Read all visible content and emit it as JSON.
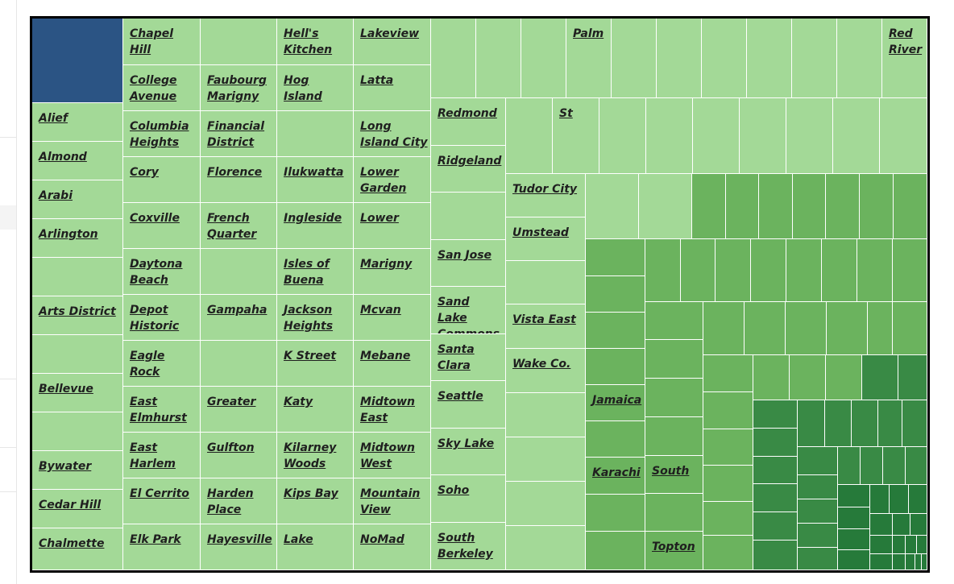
{
  "chart_data": {
    "type": "treemap",
    "note_colors": {
      "selected": "#2b5484",
      "light": "#a3d997",
      "mid": "#6bb35e",
      "dark": "#398a45",
      "darkest": "#267a3a"
    },
    "columns": [
      {
        "cells": [
          {
            "label": "",
            "value": 2,
            "selected": true
          },
          {
            "label": "Alief",
            "value": 1
          },
          {
            "label": "Almond",
            "value": 1
          },
          {
            "label": "Arabi",
            "value": 1
          },
          {
            "label": "Arlington",
            "value": 1
          },
          {
            "label": "",
            "value": 1
          },
          {
            "label": "Arts District",
            "value": 1
          },
          {
            "label": "",
            "value": 1
          },
          {
            "label": "Bellevue",
            "value": 1
          },
          {
            "label": "",
            "value": 1
          },
          {
            "label": "Bywater",
            "value": 1
          },
          {
            "label": "Cedar Hill",
            "value": 1
          },
          {
            "label": "Chalmette",
            "value": 1
          }
        ]
      },
      {
        "cells": [
          {
            "label": "Chapel Hill",
            "value": 1
          },
          {
            "label": "College Avenue",
            "value": 1
          },
          {
            "label": "Columbia Heights",
            "value": 1
          },
          {
            "label": "Cory",
            "value": 1
          },
          {
            "label": "Coxville",
            "value": 1
          },
          {
            "label": "Daytona Beach",
            "value": 1
          },
          {
            "label": "Depot Historic",
            "value": 1
          },
          {
            "label": "Eagle Rock",
            "value": 1
          },
          {
            "label": "East Elmhurst",
            "value": 1
          },
          {
            "label": "East Harlem",
            "value": 1
          },
          {
            "label": "El Cerrito",
            "value": 1
          },
          {
            "label": "Elk Park",
            "value": 1
          }
        ]
      },
      {
        "cells": [
          {
            "label": "",
            "value": 1
          },
          {
            "label": "Faubourg Marigny",
            "value": 1
          },
          {
            "label": "Financial District",
            "value": 1
          },
          {
            "label": "Florence",
            "value": 1
          },
          {
            "label": "French Quarter",
            "value": 1
          },
          {
            "label": "",
            "value": 1
          },
          {
            "label": "Gampaha",
            "value": 1
          },
          {
            "label": "",
            "value": 1
          },
          {
            "label": "Greater",
            "value": 1
          },
          {
            "label": "Gulfton",
            "value": 1
          },
          {
            "label": "Harden Place",
            "value": 1
          },
          {
            "label": "Hayesville",
            "value": 1
          }
        ]
      },
      {
        "cells": [
          {
            "label": "Hell's Kitchen",
            "value": 1
          },
          {
            "label": "Hog Island",
            "value": 1
          },
          {
            "label": "",
            "value": 1
          },
          {
            "label": "Ilukwatta",
            "value": 1
          },
          {
            "label": "Ingleside",
            "value": 1
          },
          {
            "label": "Isles of Buena",
            "value": 1
          },
          {
            "label": "Jackson Heights",
            "value": 1
          },
          {
            "label": "K Street",
            "value": 1
          },
          {
            "label": "Katy",
            "value": 1
          },
          {
            "label": "Kilarney Woods",
            "value": 1
          },
          {
            "label": "Kips Bay",
            "value": 1
          },
          {
            "label": "Lake",
            "value": 1
          }
        ]
      },
      {
        "cells": [
          {
            "label": "Lakeview",
            "value": 1
          },
          {
            "label": "Latta",
            "value": 1
          },
          {
            "label": "Long Island City",
            "value": 1
          },
          {
            "label": "Lower Garden",
            "value": 1
          },
          {
            "label": "Lower",
            "value": 1
          },
          {
            "label": "Marigny",
            "value": 1
          },
          {
            "label": "Mcvan",
            "value": 1
          },
          {
            "label": "Mebane",
            "value": 1
          },
          {
            "label": "Midtown East",
            "value": 1
          },
          {
            "label": "Midtown West",
            "value": 1
          },
          {
            "label": "Mountain View",
            "value": 1
          },
          {
            "label": "NoMad",
            "value": 1
          }
        ]
      }
    ],
    "top_row": [
      "",
      "",
      "",
      "Palm",
      "",
      "",
      "",
      "",
      "",
      "",
      "Red River"
    ],
    "second_row": [
      "St",
      "",
      "",
      "",
      "",
      "",
      ""
    ],
    "column_six": [
      {
        "label": "Redmond",
        "value": 1
      },
      {
        "label": "Ridgeland",
        "value": 1
      },
      {
        "label": "",
        "value": 1
      },
      {
        "label": "San Jose",
        "value": 1
      },
      {
        "label": "Sand Lake Commons",
        "value": 1
      },
      {
        "label": "Santa Clara",
        "value": 1
      },
      {
        "label": "Seattle",
        "value": 1
      },
      {
        "label": "Sky Lake",
        "value": 1
      },
      {
        "label": "Soho",
        "value": 1
      },
      {
        "label": "South Berkeley",
        "value": 1
      }
    ],
    "column_seven": [
      {
        "label": "",
        "value": 1
      },
      {
        "label": "Tudor City",
        "value": 1
      },
      {
        "label": "Umstead",
        "value": 1
      },
      {
        "label": "",
        "value": 1
      },
      {
        "label": "Vista East",
        "value": 1
      },
      {
        "label": "Wake Co.",
        "value": 1
      },
      {
        "label": "",
        "value": 1
      },
      {
        "label": "",
        "value": 1
      },
      {
        "label": "",
        "value": 1
      },
      {
        "label": "",
        "value": 1
      }
    ],
    "green_region_labels": [
      "Jamaica",
      "Karachi",
      "South",
      "Topton"
    ]
  }
}
